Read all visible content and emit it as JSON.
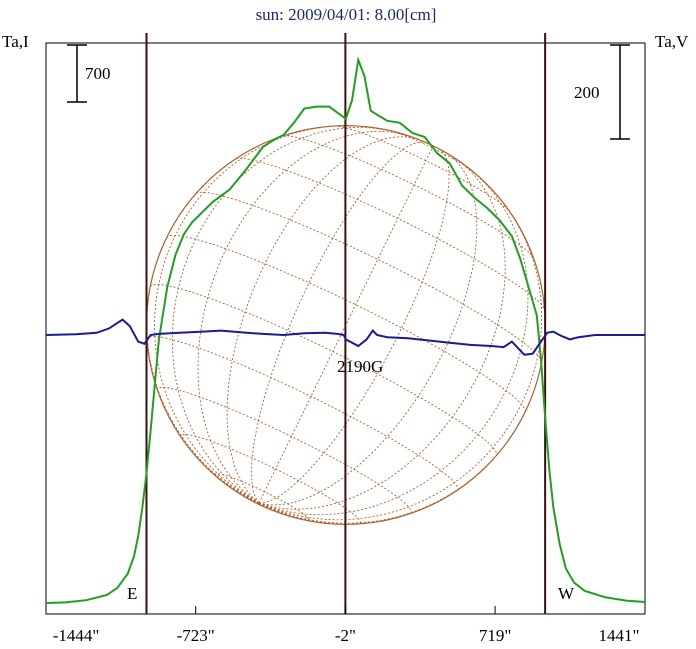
{
  "chart_data": {
    "type": "line",
    "title": "sun: 2009/04/01: 8.00[cm]",
    "left_axis_label": "Ta,I",
    "right_axis_label": "Ta,V",
    "x_tick_labels": [
      "-1444\"",
      "-723\"",
      "-2\"",
      "719\"",
      "1441\""
    ],
    "x_ticks": [
      -1444,
      -723,
      -2,
      719,
      1441
    ],
    "xlim": [
      -1444,
      1441
    ],
    "scale_bar_left": "700",
    "scale_bar_right": "200",
    "limb_labels": {
      "east": "E",
      "west": "W"
    },
    "limb_positions": [
      -960,
      960
    ],
    "annotation": "2190G",
    "grid": false,
    "colors": {
      "intensity": "#1fa01f",
      "polarization": "#1a1a9a",
      "disk": "#b0602a",
      "frame": "#000000",
      "marker": "#3a1010"
    },
    "series": [
      {
        "color": "#1fa01f",
        "x": [
          -1444,
          -1350,
          -1250,
          -1150,
          -1100,
          -1050,
          -1020,
          -1000,
          -980,
          -960,
          -940,
          -920,
          -900,
          -860,
          -820,
          -780,
          -740,
          -700,
          -640,
          -560,
          -480,
          -400,
          -340,
          -300,
          -250,
          -200,
          -140,
          -80,
          -40,
          0,
          30,
          60,
          90,
          120,
          150,
          200,
          260,
          320,
          380,
          440,
          500,
          560,
          620,
          680,
          740,
          800,
          840,
          880,
          920,
          940,
          960,
          980,
          1000,
          1030,
          1060,
          1100,
          1150,
          1250,
          1350,
          1441
        ],
        "values": [
          0,
          3,
          14,
          40,
          75,
          145,
          230,
          330,
          470,
          640,
          850,
          1080,
          1300,
          1560,
          1720,
          1820,
          1880,
          1920,
          1980,
          2040,
          2140,
          2250,
          2290,
          2310,
          2370,
          2440,
          2450,
          2450,
          2420,
          2390,
          2480,
          2680,
          2600,
          2430,
          2410,
          2380,
          2370,
          2320,
          2300,
          2220,
          2170,
          2060,
          2000,
          1950,
          1890,
          1810,
          1700,
          1560,
          1420,
          1200,
          920,
          660,
          470,
          290,
          170,
          100,
          60,
          28,
          12,
          5
        ]
      },
      {
        "color": "#1a1a9a",
        "x": [
          -1444,
          -1300,
          -1200,
          -1140,
          -1100,
          -1075,
          -1040,
          -1000,
          -970,
          -940,
          -900,
          -800,
          -700,
          -600,
          -500,
          -400,
          -300,
          -200,
          -100,
          -40,
          -10,
          0,
          60,
          100,
          130,
          150,
          200,
          300,
          400,
          500,
          600,
          700,
          760,
          800,
          840,
          860,
          900,
          940,
          970,
          1000,
          1040,
          1080,
          1120,
          1200,
          1300,
          1441
        ],
        "values": [
          0,
          3,
          10,
          30,
          55,
          70,
          40,
          -30,
          -40,
          0,
          5,
          10,
          15,
          20,
          12,
          5,
          0,
          8,
          10,
          5,
          0,
          -20,
          -50,
          -20,
          20,
          0,
          -10,
          -15,
          -25,
          -35,
          -45,
          -50,
          -55,
          -30,
          -70,
          -90,
          -85,
          -30,
          10,
          15,
          -5,
          -20,
          -10,
          0,
          0,
          0
        ]
      }
    ]
  }
}
